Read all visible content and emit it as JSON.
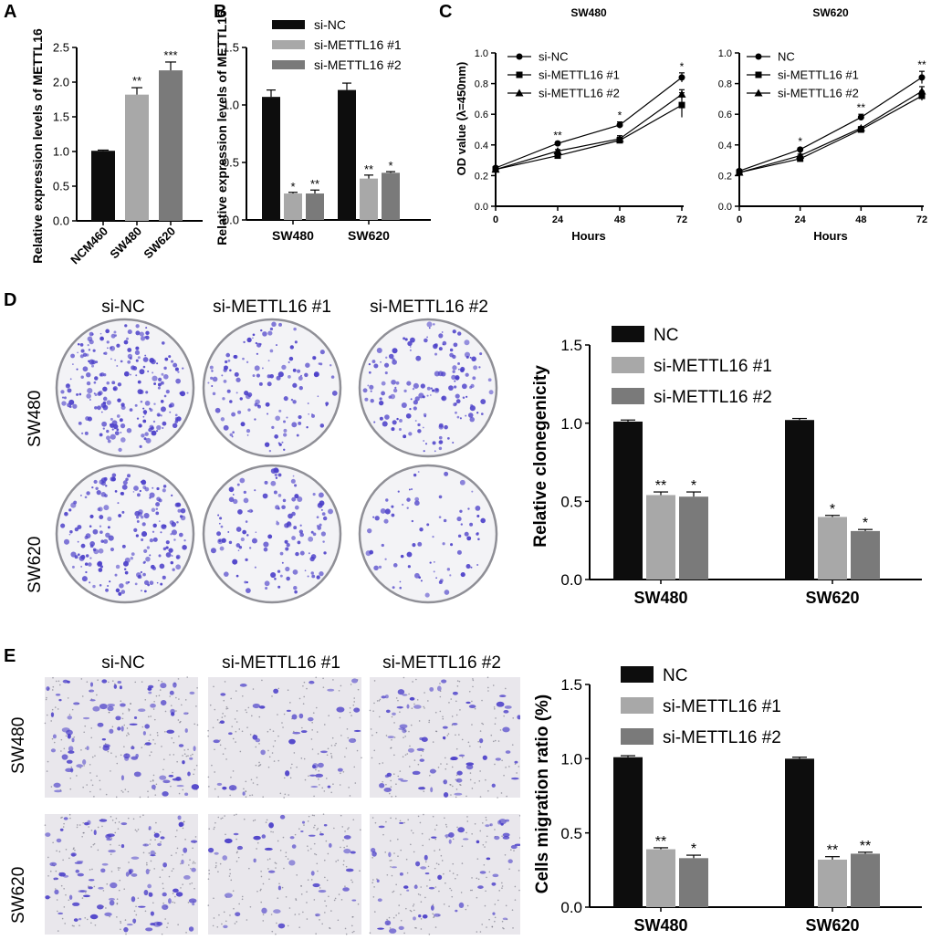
{
  "panel_letters": {
    "a": "A",
    "b": "B",
    "c": "C",
    "d": "D",
    "e": "E"
  },
  "colors": {
    "black": "#0d0d0d",
    "light_gray": "#a8a8a8",
    "mid_gray": "#7a7a7a",
    "stain": "#4b3fc9"
  },
  "chart_data": [
    {
      "id": "A",
      "type": "bar",
      "categories": [
        "NCM460",
        "SW480",
        "SW620"
      ],
      "values": [
        1.01,
        1.82,
        2.17
      ],
      "errors": [
        0.01,
        0.1,
        0.12
      ],
      "annotations": [
        "",
        "**",
        "***"
      ],
      "ylabel": "Relative expression levels of METTL16",
      "ylim": [
        0,
        2.5
      ],
      "yticks": [
        "0.0",
        "0.5",
        "1.0",
        "1.5",
        "2.0",
        "2.5"
      ],
      "colors": [
        "#0d0d0d",
        "#a8a8a8",
        "#7a7a7a"
      ]
    },
    {
      "id": "B",
      "type": "bar",
      "categories": [
        "SW480",
        "SW620"
      ],
      "series": [
        {
          "name": "si-NC",
          "values": [
            1.07,
            1.13
          ],
          "errors": [
            0.06,
            0.06
          ],
          "annotations": [
            "",
            ""
          ],
          "color": "#0d0d0d"
        },
        {
          "name": "si-METTL16 #1",
          "values": [
            0.23,
            0.36
          ],
          "errors": [
            0.01,
            0.03
          ],
          "annotations": [
            "*",
            "**"
          ],
          "color": "#a8a8a8"
        },
        {
          "name": "si-METTL16 #2",
          "values": [
            0.23,
            0.41
          ],
          "errors": [
            0.03,
            0.01
          ],
          "annotations": [
            "**",
            "*"
          ],
          "color": "#7a7a7a"
        }
      ],
      "ylabel": "Relative expression levels of METTL16",
      "ylim": [
        0,
        1.5
      ],
      "yticks": [
        "0.0",
        "0.5",
        "1.0",
        "1.5"
      ],
      "legend": "top-right"
    },
    {
      "id": "C1",
      "type": "line",
      "title": "SW480",
      "x": [
        0,
        24,
        48,
        72
      ],
      "xticks": [
        "0",
        "24",
        "48",
        "72"
      ],
      "series": [
        {
          "name": "si-NC",
          "marker": "circle",
          "values": [
            0.25,
            0.41,
            0.53,
            0.84
          ],
          "errors": [
            0.01,
            0.01,
            0.02,
            0.03
          ]
        },
        {
          "name": "si-METTL16 #1",
          "marker": "square",
          "values": [
            0.24,
            0.33,
            0.43,
            0.66
          ],
          "errors": [
            0.01,
            0.01,
            0.02,
            0.08
          ]
        },
        {
          "name": "si-METTL16 #2",
          "marker": "triangle",
          "values": [
            0.24,
            0.36,
            0.44,
            0.73
          ],
          "errors": [
            0.01,
            0.01,
            0.02,
            0.03
          ]
        }
      ],
      "annotations": [
        {
          "x": 24,
          "text": "**"
        },
        {
          "x": 48,
          "text": "*"
        },
        {
          "x": 72,
          "text": "*"
        }
      ],
      "xlabel": "Hours",
      "ylabel": "OD value (λ=450nm)",
      "ylim": [
        0,
        1.0
      ],
      "yticks": [
        "0.0",
        "0.2",
        "0.4",
        "0.6",
        "0.8",
        "1.0"
      ]
    },
    {
      "id": "C2",
      "type": "line",
      "title": "SW620",
      "x": [
        0,
        24,
        48,
        72
      ],
      "xticks": [
        "0",
        "24",
        "48",
        "72"
      ],
      "series": [
        {
          "name": "NC",
          "marker": "circle",
          "values": [
            0.23,
            0.37,
            0.58,
            0.84
          ],
          "errors": [
            0.01,
            0.01,
            0.02,
            0.04
          ]
        },
        {
          "name": "si-METTL16 #1",
          "marker": "square",
          "values": [
            0.22,
            0.31,
            0.5,
            0.72
          ],
          "errors": [
            0.01,
            0.01,
            0.01,
            0.03
          ]
        },
        {
          "name": "si-METTL16 #2",
          "marker": "triangle",
          "values": [
            0.22,
            0.33,
            0.51,
            0.75
          ],
          "errors": [
            0.01,
            0.01,
            0.01,
            0.03
          ]
        }
      ],
      "annotations": [
        {
          "x": 24,
          "text": "*"
        },
        {
          "x": 48,
          "text": "**"
        },
        {
          "x": 72,
          "text": "**"
        }
      ],
      "xlabel": "Hours",
      "ylim": [
        0,
        1.0
      ],
      "yticks": [
        "0.0",
        "0.2",
        "0.4",
        "0.6",
        "0.8",
        "1.0"
      ]
    },
    {
      "id": "D",
      "type": "bar",
      "categories": [
        "SW480",
        "SW620"
      ],
      "series": [
        {
          "name": "NC",
          "values": [
            1.01,
            1.02
          ],
          "errors": [
            0.01,
            0.01
          ],
          "annotations": [
            "",
            ""
          ],
          "color": "#0d0d0d"
        },
        {
          "name": "si-METTL16 #1",
          "values": [
            0.54,
            0.4
          ],
          "errors": [
            0.02,
            0.01
          ],
          "annotations": [
            "**",
            "*"
          ],
          "color": "#a8a8a8"
        },
        {
          "name": "si-METTL16 #2",
          "values": [
            0.53,
            0.31
          ],
          "errors": [
            0.03,
            0.01
          ],
          "annotations": [
            "*",
            "*"
          ],
          "color": "#7a7a7a"
        }
      ],
      "ylabel": "Relative clonegenicity",
      "ylim": [
        0,
        1.5
      ],
      "yticks": [
        "0.0",
        "0.5",
        "1.0",
        "1.5"
      ],
      "legend": "top-right"
    },
    {
      "id": "E",
      "type": "bar",
      "categories": [
        "SW480",
        "SW620"
      ],
      "series": [
        {
          "name": "NC",
          "values": [
            1.01,
            1.0
          ],
          "errors": [
            0.01,
            0.01
          ],
          "annotations": [
            "",
            ""
          ],
          "color": "#0d0d0d"
        },
        {
          "name": "si-METTL16 #1",
          "values": [
            0.39,
            0.32
          ],
          "errors": [
            0.01,
            0.02
          ],
          "annotations": [
            "**",
            "**"
          ],
          "color": "#a8a8a8"
        },
        {
          "name": "si-METTL16 #2",
          "values": [
            0.33,
            0.36
          ],
          "errors": [
            0.02,
            0.01
          ],
          "annotations": [
            "*",
            "**"
          ],
          "color": "#7a7a7a"
        }
      ],
      "ylabel": "Cells migration ratio (%)",
      "ylim": [
        0,
        1.5
      ],
      "yticks": [
        "0.0",
        "0.5",
        "1.0",
        "1.5"
      ],
      "legend": "top-right"
    }
  ],
  "photos": {
    "d": {
      "columns": [
        "si-NC",
        "si-METTL16 #1",
        "si-METTL16 #2"
      ],
      "rows": [
        "SW480",
        "SW620"
      ],
      "density": [
        [
          0.85,
          0.5,
          0.6
        ],
        [
          0.75,
          0.5,
          0.3
        ]
      ]
    },
    "e": {
      "columns": [
        "si-NC",
        "si-METTL16 #1",
        "si-METTL16 #2"
      ],
      "rows": [
        "SW480",
        "SW620"
      ],
      "density": [
        [
          0.8,
          0.35,
          0.55
        ],
        [
          0.8,
          0.35,
          0.5
        ]
      ]
    }
  }
}
